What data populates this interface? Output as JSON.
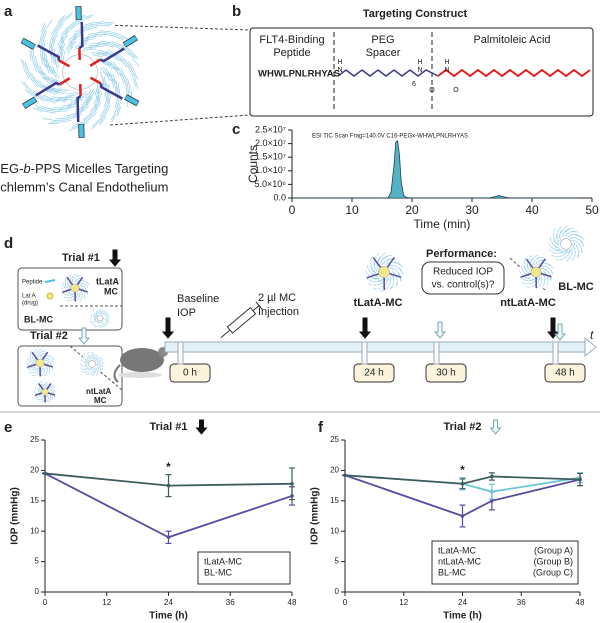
{
  "figure": {
    "panel_a": {
      "label": "a",
      "caption": [
        "PEG-",
        "b",
        "-PPS Micelles Targeting"
      ],
      "caption_line2": "Schlemm’s Canal Endothelium"
    },
    "panel_b": {
      "label": "b",
      "title": "Targeting Construct",
      "sections": [
        [
          "FLT4-Binding",
          "Peptide"
        ],
        [
          "PEG",
          "Spacer"
        ],
        [
          "Palmitoleic Acid"
        ]
      ],
      "peptide": "WHWLPNLRHYAS",
      "structure_labels": [
        "H",
        "N",
        "6",
        "H",
        "N",
        "O",
        "H",
        "N",
        "O"
      ]
    },
    "panel_d": {
      "label": "d",
      "trial1": "Trial #1",
      "trial2": "Trial #2",
      "peptide": "Peptide",
      "drug": [
        "Lat A",
        "(drug)"
      ],
      "tlata": [
        "tLatA",
        "MC"
      ],
      "blmc": "BL-MC",
      "ntlata": [
        "ntLatA",
        "MC"
      ],
      "baseline": [
        "Baseline",
        "IOP"
      ],
      "injection": [
        "2 µl MC",
        "Injection"
      ],
      "performance": "Performance:",
      "question": [
        "Reduced IOP",
        "vs. control(s)?"
      ],
      "perf_labels": [
        "tLatA-MC",
        "ntLatA-MC",
        "BL-MC"
      ],
      "timepoints": [
        "0 h",
        "24  h",
        "30  h",
        "48  h"
      ],
      "axis": "t"
    }
  },
  "chart_data": [
    {
      "type": "area",
      "panel": "c",
      "xlabel": "Time (min)",
      "ylabel": "Counts",
      "xlim": [
        0,
        50
      ],
      "xticks": [
        0,
        10,
        20,
        30,
        40,
        50
      ],
      "ylim": [
        0,
        25000000
      ],
      "yticks": [
        {
          "value": 0,
          "label": "0.0"
        },
        {
          "value": 5000000,
          "label": "5.0×10⁶"
        },
        {
          "value": 10000000,
          "label": "1.0×10⁷"
        },
        {
          "value": 15000000,
          "label": "1.5×10⁷"
        },
        {
          "value": 20000000,
          "label": "2.0×10⁷"
        },
        {
          "value": 25000000,
          "label": "2.5×10⁷"
        }
      ],
      "x": [
        0,
        5,
        10,
        15,
        16,
        16.5,
        17,
        17.3,
        17.6,
        17.9,
        18.2,
        18.6,
        19,
        20,
        25,
        30,
        33,
        34,
        34.5,
        35,
        36,
        40,
        45,
        48
      ],
      "series": [
        {
          "name": "ESI TIC Scan Frag=140.0V C16-PEGx-WHWLPNLRHYAS",
          "color": "#2a9fb8",
          "values": [
            0,
            0,
            0,
            0,
            100000,
            2000000,
            12000000,
            20500000,
            21000000,
            16000000,
            6000000,
            1000000,
            200000,
            0,
            0,
            0,
            100000,
            600000,
            900000,
            600000,
            100000,
            0,
            0,
            0
          ]
        }
      ],
      "legend": "upper left"
    },
    {
      "type": "line",
      "panel": "e",
      "title": "Trial #1",
      "xlabel": "Time (h)",
      "ylabel": "IOP (mmHg)",
      "annotation": "*",
      "xlim": [
        0,
        48
      ],
      "xticks": [
        0,
        12,
        24,
        36,
        48
      ],
      "ylim": [
        0,
        25
      ],
      "yticks": [
        0,
        5,
        10,
        15,
        20,
        25
      ],
      "x": [
        0,
        24,
        48
      ],
      "series": [
        {
          "name": "tLatA-MC",
          "color": "#5a4a9f",
          "values": [
            19.5,
            9,
            15.8
          ],
          "errors": [
            0,
            1,
            1.5
          ]
        },
        {
          "name": "BL-MC",
          "color": "#3f5c5c",
          "values": [
            19.5,
            17.5,
            17.8
          ],
          "errors": [
            0,
            1.8,
            2.6
          ]
        }
      ],
      "legend": "lower right"
    },
    {
      "type": "line",
      "panel": "f",
      "title": "Trial #2",
      "xlabel": "Time (h)",
      "ylabel": "IOP (mmHg)",
      "annotation": "*",
      "xlim": [
        0,
        48
      ],
      "xticks": [
        0,
        12,
        24,
        36,
        48
      ],
      "ylim": [
        0,
        25
      ],
      "yticks": [
        0,
        5,
        10,
        15,
        20,
        25
      ],
      "x": [
        0,
        24,
        30,
        48
      ],
      "series": [
        {
          "name": "tLatA-MC",
          "group": "(Group A)",
          "color": "#5a4a9f",
          "values": [
            19.2,
            12.5,
            15,
            18.5
          ],
          "errors": [
            0,
            1.8,
            1.5,
            1
          ]
        },
        {
          "name": "ntLatA-MC",
          "group": "(Group B)",
          "color": "#6cc5d8",
          "values": [
            19.2,
            17.8,
            16.5,
            18.8
          ],
          "errors": [
            0,
            1,
            1.2,
            0.8
          ]
        },
        {
          "name": "BL-MC",
          "group": "(Group C)",
          "color": "#3f5c5c",
          "values": [
            19.2,
            17.8,
            19,
            18.5
          ],
          "errors": [
            0,
            0.8,
            0.6,
            1
          ]
        }
      ],
      "legend": "lower right"
    }
  ]
}
